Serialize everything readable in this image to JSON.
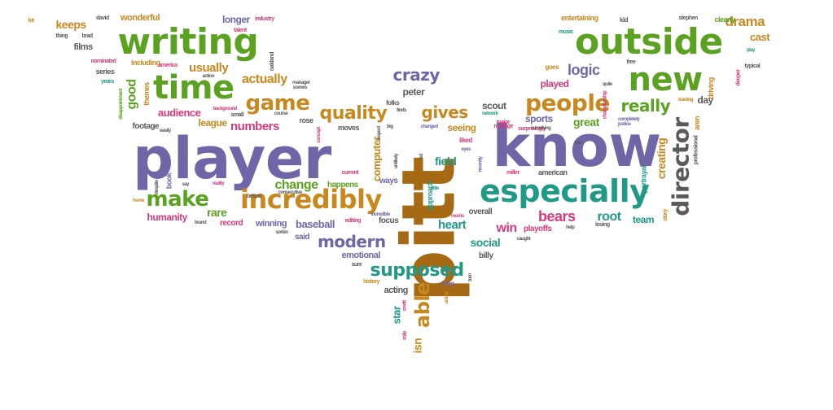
{
  "palette": {
    "purple": "#6f66a8",
    "green": "#5aa21f",
    "orange": "#c9881e",
    "pink": "#d63a7c",
    "gray": "#5a5a5a",
    "teal": "#1f9a86",
    "brown": "#a66a14"
  },
  "words": [
    {
      "text": "player",
      "color": "purple"
    },
    {
      "text": "pitt",
      "color": "brown"
    },
    {
      "text": "know",
      "color": "purple"
    },
    {
      "text": "writing",
      "color": "green"
    },
    {
      "text": "outside",
      "color": "green"
    },
    {
      "text": "new",
      "color": "green"
    },
    {
      "text": "especially",
      "color": "teal"
    },
    {
      "text": "time",
      "color": "green"
    },
    {
      "text": "incredibly",
      "color": "orange"
    },
    {
      "text": "director",
      "color": "gray"
    },
    {
      "text": "game",
      "color": "orange"
    },
    {
      "text": "people",
      "color": "orange"
    },
    {
      "text": "make",
      "color": "green"
    },
    {
      "text": "supposed",
      "color": "teal"
    },
    {
      "text": "able",
      "color": "orange"
    },
    {
      "text": "quality",
      "color": "orange"
    },
    {
      "text": "really",
      "color": "green"
    },
    {
      "text": "crazy",
      "color": "purple"
    },
    {
      "text": "modern",
      "color": "purple"
    },
    {
      "text": "gives",
      "color": "orange"
    },
    {
      "text": "logic",
      "color": "purple"
    },
    {
      "text": "bears",
      "color": "pink"
    },
    {
      "text": "actually",
      "color": "orange"
    },
    {
      "text": "usually",
      "color": "orange"
    },
    {
      "text": "numbers",
      "color": "pink"
    },
    {
      "text": "change",
      "color": "green"
    },
    {
      "text": "drama",
      "color": "orange"
    },
    {
      "text": "keeps",
      "color": "orange"
    },
    {
      "text": "longer",
      "color": "purple"
    },
    {
      "text": "good",
      "color": "green"
    },
    {
      "text": "win",
      "color": "pink"
    },
    {
      "text": "root",
      "color": "teal"
    },
    {
      "text": "heart",
      "color": "teal"
    },
    {
      "text": "field",
      "color": "teal"
    },
    {
      "text": "creating",
      "color": "orange"
    },
    {
      "text": "computer",
      "color": "orange"
    },
    {
      "text": "rare",
      "color": "green"
    },
    {
      "text": "social",
      "color": "teal"
    },
    {
      "text": "great",
      "color": "green"
    },
    {
      "text": "seeing",
      "color": "orange"
    },
    {
      "text": "peter",
      "color": "gray"
    },
    {
      "text": "audience",
      "color": "pink"
    },
    {
      "text": "scout",
      "color": "gray"
    },
    {
      "text": "sports",
      "color": "purple"
    },
    {
      "text": "baseball",
      "color": "purple"
    },
    {
      "text": "cast",
      "color": "orange"
    },
    {
      "text": "day",
      "color": "gray"
    },
    {
      "text": "humanity",
      "color": "pink"
    },
    {
      "text": "league",
      "color": "orange"
    },
    {
      "text": "team",
      "color": "teal"
    },
    {
      "text": "films",
      "color": "gray"
    },
    {
      "text": "wonderful",
      "color": "orange"
    },
    {
      "text": "winning",
      "color": "purple"
    },
    {
      "text": "emotional",
      "color": "purple"
    },
    {
      "text": "star",
      "color": "teal"
    },
    {
      "text": "acting",
      "color": "gray"
    },
    {
      "text": "footage",
      "color": "gray"
    },
    {
      "text": "playoffs",
      "color": "pink"
    },
    {
      "text": "happens",
      "color": "green"
    },
    {
      "text": "overall",
      "color": "gray"
    },
    {
      "text": "record",
      "color": "pink"
    },
    {
      "text": "said",
      "color": "purple"
    },
    {
      "text": "billy",
      "color": "gray"
    },
    {
      "text": "isn",
      "color": "orange"
    },
    {
      "text": "played",
      "color": "pink"
    },
    {
      "text": "entertaining",
      "color": "orange"
    },
    {
      "text": "clearly",
      "color": "green"
    },
    {
      "text": "moves",
      "color": "gray"
    },
    {
      "text": "ways",
      "color": "purple"
    },
    {
      "text": "focus",
      "color": "gray"
    },
    {
      "text": "themes",
      "color": "orange"
    },
    {
      "text": "series",
      "color": "gray"
    },
    {
      "text": "book",
      "color": "purple"
    },
    {
      "text": "rose",
      "color": "gray"
    },
    {
      "text": "american",
      "color": "gray"
    },
    {
      "text": "approach",
      "color": "teal"
    },
    {
      "text": "aren",
      "color": "orange"
    },
    {
      "text": "driving",
      "color": "orange"
    },
    {
      "text": "portrayal",
      "color": "teal"
    },
    {
      "text": "long",
      "color": "purple"
    },
    {
      "text": "goes",
      "color": "orange"
    },
    {
      "text": "kid",
      "color": "gray"
    },
    {
      "text": "liked",
      "color": "pink"
    },
    {
      "text": "folks",
      "color": "gray"
    },
    {
      "text": "including",
      "color": "orange"
    },
    {
      "text": "brad",
      "color": "gray"
    },
    {
      "text": "david",
      "color": "gray"
    },
    {
      "text": "industry",
      "color": "pink"
    },
    {
      "text": "talent",
      "color": "pink"
    },
    {
      "text": "nominated",
      "color": "pink"
    },
    {
      "text": "america",
      "color": "pink"
    },
    {
      "text": "thing",
      "color": "gray"
    },
    {
      "text": "lot",
      "color": "orange"
    },
    {
      "text": "years",
      "color": "teal"
    },
    {
      "text": "stephen",
      "color": "gray"
    },
    {
      "text": "music",
      "color": "teal"
    },
    {
      "text": "free",
      "color": "gray"
    },
    {
      "text": "typical",
      "color": "gray"
    },
    {
      "text": "play",
      "color": "teal"
    },
    {
      "text": "deeper",
      "color": "pink"
    },
    {
      "text": "story",
      "color": "orange"
    },
    {
      "text": "professional",
      "color": "gray"
    },
    {
      "text": "justice",
      "color": "purple"
    },
    {
      "text": "completely",
      "color": "purple"
    },
    {
      "text": "surprisingly",
      "color": "pink"
    },
    {
      "text": "saw",
      "color": "gray"
    },
    {
      "text": "miller",
      "color": "pink"
    },
    {
      "text": "manage",
      "color": "pink"
    },
    {
      "text": "major",
      "color": "pink"
    },
    {
      "text": "changed",
      "color": "purple"
    },
    {
      "text": "network",
      "color": "teal"
    },
    {
      "text": "big",
      "color": "gray"
    },
    {
      "text": "current",
      "color": "pink"
    },
    {
      "text": "consecutive",
      "color": "gray"
    },
    {
      "text": "beane",
      "color": "gray"
    },
    {
      "text": "editing",
      "color": "pink"
    },
    {
      "text": "sure",
      "color": "gray"
    },
    {
      "text": "history",
      "color": "orange"
    },
    {
      "text": "credit",
      "color": "pink"
    },
    {
      "text": "role",
      "color": "pink"
    },
    {
      "text": "actual",
      "color": "orange"
    },
    {
      "text": "little",
      "color": "teal"
    },
    {
      "text": "incredible",
      "color": "purple"
    },
    {
      "text": "manager",
      "color": "gray"
    },
    {
      "text": "scenes",
      "color": "gray"
    },
    {
      "text": "background",
      "color": "pink"
    },
    {
      "text": "small",
      "color": "gray"
    },
    {
      "text": "action",
      "color": "gray"
    },
    {
      "text": "course",
      "color": "gray"
    },
    {
      "text": "easily",
      "color": "gray"
    },
    {
      "text": "say",
      "color": "gray"
    },
    {
      "text": "reality",
      "color": "pink"
    },
    {
      "text": "despite",
      "color": "gray"
    },
    {
      "text": "home",
      "color": "orange"
    },
    {
      "text": "brand",
      "color": "gray"
    },
    {
      "text": "sorkin",
      "color": "gray"
    },
    {
      "text": "oakland",
      "color": "gray"
    },
    {
      "text": "disappointment",
      "color": "green"
    },
    {
      "text": "help",
      "color": "gray"
    },
    {
      "text": "losing",
      "color": "gray"
    },
    {
      "text": "caught",
      "color": "gray"
    },
    {
      "text": "eyes",
      "color": "purple"
    },
    {
      "text": "morris",
      "color": "pink"
    },
    {
      "text": "recently",
      "color": "purple"
    },
    {
      "text": "lot",
      "color": "gray"
    },
    {
      "text": "unlikely",
      "color": "gray"
    },
    {
      "text": "turn",
      "color": "gray"
    },
    {
      "text": "quite",
      "color": "gray"
    },
    {
      "text": "training",
      "color": "orange"
    },
    {
      "text": "championship",
      "color": "pink"
    },
    {
      "text": "surprising",
      "color": "gray"
    },
    {
      "text": "finds",
      "color": "gray"
    },
    {
      "text": "concept",
      "color": "pink"
    },
    {
      "text": "respect",
      "color": "gray"
    }
  ]
}
